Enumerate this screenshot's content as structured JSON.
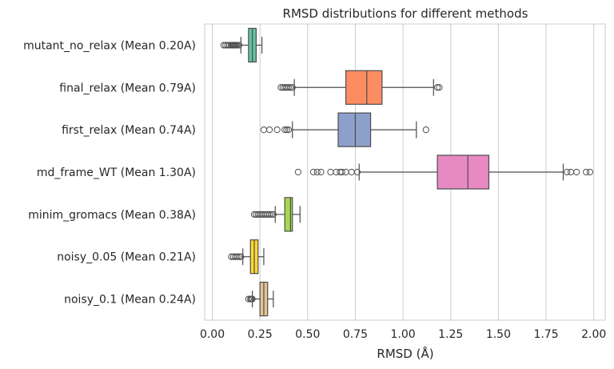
{
  "chart_data": {
    "type": "boxplot",
    "orientation": "horizontal",
    "title": "RMSD distributions for different methods",
    "xlabel": "RMSD (Å)",
    "ylabel": "",
    "xlim": [
      -0.04,
      2.06
    ],
    "xticks": [
      0.0,
      0.25,
      0.5,
      0.75,
      1.0,
      1.25,
      1.5,
      1.75,
      2.0
    ],
    "xtick_labels": [
      "0.00",
      "0.25",
      "0.50",
      "0.75",
      "1.00",
      "1.25",
      "1.50",
      "1.75",
      "2.00"
    ],
    "grid": "vertical",
    "legend": "none",
    "categories": [
      "mutant_no_relax (Mean 0.20A)",
      "final_relax (Mean 0.79A)",
      "first_relax (Mean 0.74A)",
      "md_frame_WT (Mean 1.30A)",
      "minim_gromacs (Mean 0.38A)",
      "noisy_0.05 (Mean 0.21A)",
      "noisy_0.1 (Mean 0.24A)"
    ],
    "boxes": [
      {
        "whislo": 0.15,
        "q1": 0.19,
        "med": 0.21,
        "q3": 0.23,
        "whishi": 0.26,
        "fliers": [
          0.06,
          0.07,
          0.08,
          0.09,
          0.1,
          0.105,
          0.11,
          0.115,
          0.12,
          0.125,
          0.13,
          0.14
        ],
        "color": "#66c2a5"
      },
      {
        "whislo": 0.43,
        "q1": 0.7,
        "med": 0.81,
        "q3": 0.89,
        "whishi": 1.16,
        "fliers": [
          0.36,
          0.37,
          0.38,
          0.39,
          0.4,
          0.41,
          0.42,
          1.18,
          1.19
        ],
        "color": "#fc8d62"
      },
      {
        "whislo": 0.42,
        "q1": 0.66,
        "med": 0.75,
        "q3": 0.83,
        "whishi": 1.07,
        "fliers": [
          0.27,
          0.3,
          0.34,
          0.38,
          0.39,
          0.4,
          1.12
        ],
        "color": "#8da0cb"
      },
      {
        "whislo": 0.77,
        "q1": 1.18,
        "med": 1.34,
        "q3": 1.45,
        "whishi": 1.84,
        "fliers": [
          0.45,
          0.53,
          0.55,
          0.57,
          0.62,
          0.65,
          0.67,
          0.68,
          0.7,
          0.73,
          0.76,
          1.86,
          1.88,
          1.91,
          1.96,
          1.98
        ],
        "color": "#e78ac3"
      },
      {
        "whislo": 0.33,
        "q1": 0.38,
        "med": 0.41,
        "q3": 0.42,
        "whishi": 0.46,
        "fliers": [
          0.22,
          0.23,
          0.24,
          0.25,
          0.26,
          0.27,
          0.28,
          0.29,
          0.3,
          0.31,
          0.32
        ],
        "color": "#a6d854"
      },
      {
        "whislo": 0.16,
        "q1": 0.2,
        "med": 0.22,
        "q3": 0.24,
        "whishi": 0.27,
        "fliers": [
          0.1,
          0.11,
          0.12,
          0.13,
          0.14,
          0.15
        ],
        "color": "#ffd92f"
      },
      {
        "whislo": 0.21,
        "q1": 0.25,
        "med": 0.27,
        "q3": 0.29,
        "whishi": 0.32,
        "fliers": [
          0.19,
          0.2,
          0.205,
          0.21
        ],
        "color": "#e5c494"
      }
    ]
  }
}
